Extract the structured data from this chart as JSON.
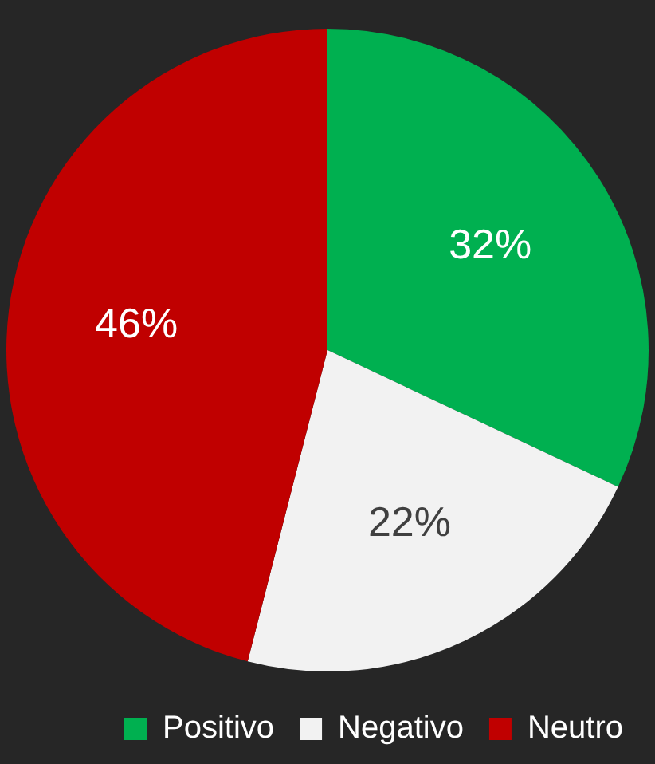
{
  "chart_data": {
    "type": "pie",
    "categories": [
      "Positivo",
      "Negativo",
      "Neutro"
    ],
    "values": [
      32,
      22,
      46
    ],
    "colors": [
      "#00b050",
      "#f2f2f2",
      "#c00000"
    ],
    "value_labels": [
      "32%",
      "22%",
      "46%"
    ],
    "legend": "bottom right"
  }
}
